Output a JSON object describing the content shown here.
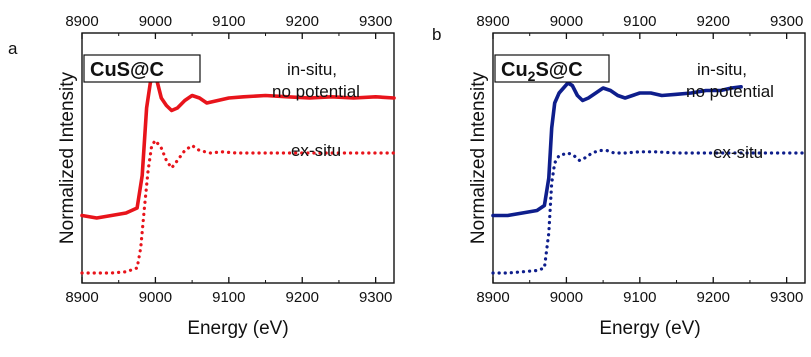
{
  "chart_data": [
    {
      "type": "line",
      "panel": "a",
      "title": "CuS@C",
      "xlabel": "Energy (eV)",
      "ylabel": "Normalized Intensity",
      "xlim": [
        8900,
        9325
      ],
      "ylim": [
        0,
        1
      ],
      "x_ticks": [
        "8900",
        "9000",
        "9100",
        "9200",
        "9300"
      ],
      "x_tick_values": [
        8900,
        9000,
        9100,
        9200,
        9300
      ],
      "annotations": [
        "in-situ,",
        "no potential",
        "ex-situ"
      ],
      "series": [
        {
          "name": "in-situ, no potential",
          "style": "solid",
          "color": "#e8141b",
          "x": [
            8900,
            8920,
            8940,
            8960,
            8975,
            8982,
            8988,
            8993,
            8997,
            9002,
            9008,
            9015,
            9022,
            9030,
            9040,
            9050,
            9060,
            9070,
            9085,
            9100,
            9120,
            9150,
            9180,
            9210,
            9240,
            9270,
            9300,
            9325
          ],
          "y": [
            0.27,
            0.26,
            0.27,
            0.28,
            0.3,
            0.43,
            0.7,
            0.8,
            0.83,
            0.81,
            0.74,
            0.71,
            0.69,
            0.7,
            0.73,
            0.75,
            0.74,
            0.72,
            0.73,
            0.74,
            0.745,
            0.75,
            0.745,
            0.74,
            0.745,
            0.74,
            0.745,
            0.74
          ]
        },
        {
          "name": "ex-situ",
          "style": "dotted",
          "color": "#e8141b",
          "x": [
            8900,
            8920,
            8940,
            8960,
            8975,
            8980,
            8985,
            8990,
            8995,
            9000,
            9008,
            9015,
            9022,
            9030,
            9040,
            9050,
            9060,
            9075,
            9090,
            9110,
            9140,
            9170,
            9200,
            9230,
            9260,
            9290,
            9325
          ],
          "y": [
            0.04,
            0.04,
            0.04,
            0.045,
            0.06,
            0.14,
            0.3,
            0.45,
            0.55,
            0.57,
            0.54,
            0.49,
            0.46,
            0.49,
            0.53,
            0.55,
            0.53,
            0.52,
            0.525,
            0.52,
            0.52,
            0.52,
            0.52,
            0.52,
            0.52,
            0.52,
            0.52
          ]
        }
      ]
    },
    {
      "type": "line",
      "panel": "b",
      "title": "Cu2S@C",
      "title_main": "Cu",
      "title_sub": "2",
      "title_rest": "S@C",
      "xlabel": "Energy (eV)",
      "ylabel": "Normalized Intensity",
      "xlim": [
        8900,
        9325
      ],
      "ylim": [
        0,
        1
      ],
      "x_ticks": [
        "8900",
        "9000",
        "9100",
        "9200",
        "9300"
      ],
      "x_tick_values": [
        8900,
        9000,
        9100,
        9200,
        9300
      ],
      "annotations": [
        "in-situ,",
        "no potential",
        "ex-situ"
      ],
      "series": [
        {
          "name": "in-situ, no potential",
          "style": "solid",
          "color": "#0e1e8c",
          "x": [
            8900,
            8920,
            8940,
            8960,
            8970,
            8976,
            8980,
            8984,
            8990,
            8996,
            9002,
            9008,
            9015,
            9022,
            9030,
            9040,
            9050,
            9060,
            9070,
            9080,
            9090,
            9100,
            9115,
            9130,
            9150,
            9170,
            9190,
            9210,
            9225,
            9238
          ],
          "y": [
            0.27,
            0.27,
            0.28,
            0.29,
            0.31,
            0.42,
            0.62,
            0.72,
            0.76,
            0.78,
            0.8,
            0.79,
            0.75,
            0.73,
            0.74,
            0.76,
            0.78,
            0.77,
            0.75,
            0.74,
            0.75,
            0.76,
            0.76,
            0.75,
            0.755,
            0.76,
            0.77,
            0.77,
            0.78,
            0.785
          ]
        },
        {
          "name": "ex-situ",
          "style": "dotted",
          "color": "#0e1e8c",
          "x": [
            8900,
            8920,
            8940,
            8960,
            8970,
            8976,
            8980,
            8984,
            8990,
            8996,
            9002,
            9010,
            9018,
            9025,
            9035,
            9045,
            9055,
            9065,
            9080,
            9100,
            9120,
            9150,
            9180,
            9210,
            9240,
            9270,
            9300,
            9325
          ],
          "y": [
            0.04,
            0.04,
            0.045,
            0.05,
            0.06,
            0.2,
            0.4,
            0.48,
            0.51,
            0.515,
            0.52,
            0.51,
            0.49,
            0.5,
            0.52,
            0.53,
            0.53,
            0.52,
            0.52,
            0.525,
            0.525,
            0.52,
            0.52,
            0.52,
            0.52,
            0.52,
            0.52,
            0.52
          ]
        }
      ]
    }
  ]
}
